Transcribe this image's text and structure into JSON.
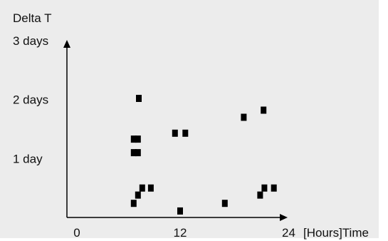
{
  "chart_data": {
    "type": "scatter",
    "title": "",
    "ylabel": "Delta T",
    "xlabel_suffix": "[Hours]Time",
    "x_ticks": [
      {
        "value": 0,
        "label": "0"
      },
      {
        "value": 12,
        "label": "12"
      },
      {
        "value": 24,
        "label": "24"
      }
    ],
    "y_ticks": [
      {
        "value": 1,
        "label": "1 day"
      },
      {
        "value": 2,
        "label": "2 days"
      },
      {
        "value": 3,
        "label": "3 days"
      }
    ],
    "xlim": [
      0,
      24
    ],
    "ylim": [
      0,
      3
    ],
    "grid": false,
    "marker": "square",
    "marker_color": "#000000",
    "points": [
      {
        "x": 7.2,
        "y": 2.02
      },
      {
        "x": 6.6,
        "y": 1.33
      },
      {
        "x": 7.1,
        "y": 1.33
      },
      {
        "x": 6.6,
        "y": 1.1
      },
      {
        "x": 7.1,
        "y": 1.1
      },
      {
        "x": 7.6,
        "y": 0.5
      },
      {
        "x": 8.6,
        "y": 0.5
      },
      {
        "x": 7.1,
        "y": 0.38
      },
      {
        "x": 6.6,
        "y": 0.24
      },
      {
        "x": 11.4,
        "y": 1.43
      },
      {
        "x": 12.6,
        "y": 1.43
      },
      {
        "x": 12.0,
        "y": 0.11
      },
      {
        "x": 17.2,
        "y": 0.24
      },
      {
        "x": 19.4,
        "y": 1.7
      },
      {
        "x": 21.7,
        "y": 1.82
      },
      {
        "x": 21.3,
        "y": 0.38
      },
      {
        "x": 21.8,
        "y": 0.5
      },
      {
        "x": 22.9,
        "y": 0.5
      }
    ]
  }
}
